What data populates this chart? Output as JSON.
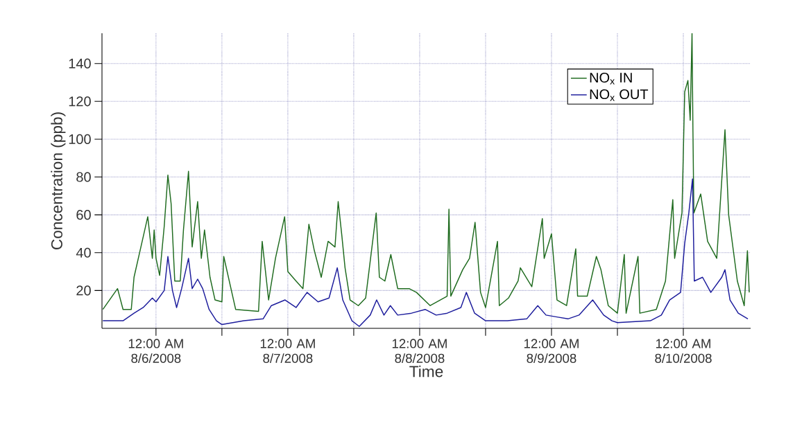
{
  "chart_data": {
    "type": "line",
    "xlabel": "Time",
    "ylabel": "Concentration (ppb)",
    "xlim": [
      "2008-08-05T14:10",
      "2008-08-10T12:15"
    ],
    "ylim": [
      0,
      156
    ],
    "xticks": [
      {
        "value": "2008-08-06T00:00",
        "label": "12:00 AM 8/6/2008"
      },
      {
        "value": "2008-08-06T12:00",
        "label": null
      },
      {
        "value": "2008-08-07T00:00",
        "label": "12:00 AM 8/7/2008"
      },
      {
        "value": "2008-08-07T12:00",
        "label": null
      },
      {
        "value": "2008-08-08T00:00",
        "label": "12:00 AM 8/8/2008"
      },
      {
        "value": "2008-08-08T12:00",
        "label": null
      },
      {
        "value": "2008-08-09T00:00",
        "label": "12:00 AM 8/9/2008"
      },
      {
        "value": "2008-08-09T12:00",
        "label": null
      },
      {
        "value": "2008-08-10T00:00",
        "label": "12:00 AM 8/10/2008"
      }
    ],
    "yticks": [
      20,
      40,
      60,
      80,
      100,
      120,
      140
    ],
    "grid": true,
    "legend": "top right",
    "series": [
      {
        "name": "NO$_{x}$ IN",
        "color": "#1f6b1f",
        "x": [
          "2008-08-05T14:20",
          "2008-08-05T17:00",
          "2008-08-05T18:00",
          "2008-08-05T19:30",
          "2008-08-05T20:00",
          "2008-08-05T21:15",
          "2008-08-05T22:30",
          "2008-08-05T23:20",
          "2008-08-05T23:40",
          "2008-08-06T00:00",
          "2008-08-06T00:40",
          "2008-08-06T01:30",
          "2008-08-06T02:10",
          "2008-08-06T02:45",
          "2008-08-06T03:25",
          "2008-08-06T04:25",
          "2008-08-06T05:00",
          "2008-08-06T05:55",
          "2008-08-06T06:35",
          "2008-08-06T07:35",
          "2008-08-06T08:15",
          "2008-08-06T08:50",
          "2008-08-06T09:50",
          "2008-08-06T10:45",
          "2008-08-06T12:00",
          "2008-08-06T12:20",
          "2008-08-06T14:30",
          "2008-08-06T18:40",
          "2008-08-06T19:20",
          "2008-08-06T20:30",
          "2008-08-06T21:45",
          "2008-08-06T23:25",
          "2008-08-07T00:00",
          "2008-08-07T01:30",
          "2008-08-07T02:45",
          "2008-08-07T03:50",
          "2008-08-07T04:50",
          "2008-08-07T06:05",
          "2008-08-07T07:20",
          "2008-08-07T08:35",
          "2008-08-07T09:10",
          "2008-08-07T09:50",
          "2008-08-07T10:25",
          "2008-08-07T11:20",
          "2008-08-07T12:50",
          "2008-08-07T14:10",
          "2008-08-07T16:05",
          "2008-08-07T16:40",
          "2008-08-07T17:40",
          "2008-08-07T18:45",
          "2008-08-07T20:00",
          "2008-08-07T22:05",
          "2008-08-07T23:25",
          "2008-08-08T01:55",
          "2008-08-08T05:00",
          "2008-08-08T05:20",
          "2008-08-08T05:40",
          "2008-08-08T07:50",
          "2008-08-08T09:05",
          "2008-08-08T10:05",
          "2008-08-08T11:05",
          "2008-08-08T12:00",
          "2008-08-08T14:10",
          "2008-08-08T14:30",
          "2008-08-08T16:10",
          "2008-08-08T17:55",
          "2008-08-08T18:20",
          "2008-08-08T20:25",
          "2008-08-08T22:20",
          "2008-08-08T22:40",
          "2008-08-09T00:00",
          "2008-08-09T01:00",
          "2008-08-09T02:45",
          "2008-08-09T04:25",
          "2008-08-09T04:45",
          "2008-08-09T06:30",
          "2008-08-09T08:10",
          "2008-08-09T09:00",
          "2008-08-09T10:20",
          "2008-08-09T12:00",
          "2008-08-09T13:15",
          "2008-08-09T13:35",
          "2008-08-09T15:45",
          "2008-08-09T16:05",
          "2008-08-09T19:05",
          "2008-08-09T20:45",
          "2008-08-09T22:05",
          "2008-08-09T22:25",
          "2008-08-09T23:45",
          "2008-08-10T00:15",
          "2008-08-10T00:50",
          "2008-08-10T01:15",
          "2008-08-10T01:35",
          "2008-08-10T01:45",
          "2008-08-10T01:55",
          "2008-08-10T03:10",
          "2008-08-10T04:25",
          "2008-08-10T06:05",
          "2008-08-10T07:35",
          "2008-08-10T08:15",
          "2008-08-10T09:50",
          "2008-08-10T11:05",
          "2008-08-10T11:40",
          "2008-08-10T12:00"
        ],
        "values": [
          10,
          21,
          10,
          10,
          27,
          43,
          59,
          37,
          52,
          37,
          28,
          54,
          81,
          66,
          25,
          25,
          52,
          83,
          43,
          67,
          37,
          52,
          27,
          15,
          14,
          38,
          10,
          9,
          46,
          15,
          37,
          59,
          30,
          25,
          21,
          55,
          41,
          27,
          46,
          43,
          67,
          49,
          32,
          15,
          12,
          16,
          61,
          27,
          25,
          39,
          21,
          21,
          19,
          12,
          17,
          63,
          17,
          31,
          37,
          56,
          19,
          11,
          46,
          12,
          16,
          25,
          32,
          22,
          58,
          37,
          50,
          15,
          12,
          42,
          17,
          17,
          38,
          31,
          12,
          8,
          39,
          8,
          38,
          8,
          10,
          25,
          68,
          37,
          61,
          125,
          131,
          110,
          156,
          104,
          61,
          71,
          46,
          37,
          105,
          60,
          25,
          12,
          41,
          19
        ]
      },
      {
        "name": "NO$_{x}$ OUT",
        "color": "#1c1c9c",
        "x": [
          "2008-08-05T14:20",
          "2008-08-05T18:00",
          "2008-08-05T20:00",
          "2008-08-05T21:40",
          "2008-08-05T23:20",
          "2008-08-06T00:00",
          "2008-08-06T01:30",
          "2008-08-06T02:10",
          "2008-08-06T03:00",
          "2008-08-06T03:45",
          "2008-08-06T04:40",
          "2008-08-06T05:55",
          "2008-08-06T06:35",
          "2008-08-06T07:35",
          "2008-08-06T08:30",
          "2008-08-06T09:40",
          "2008-08-06T11:00",
          "2008-08-06T12:00",
          "2008-08-06T16:00",
          "2008-08-06T19:30",
          "2008-08-06T21:00",
          "2008-08-06T23:30",
          "2008-08-07T01:30",
          "2008-08-07T03:30",
          "2008-08-07T05:30",
          "2008-08-07T07:30",
          "2008-08-07T09:00",
          "2008-08-07T10:00",
          "2008-08-07T11:40",
          "2008-08-07T13:00",
          "2008-08-07T15:00",
          "2008-08-07T16:10",
          "2008-08-07T17:30",
          "2008-08-07T18:40",
          "2008-08-07T20:00",
          "2008-08-07T22:30",
          "2008-08-08T01:00",
          "2008-08-08T03:00",
          "2008-08-08T05:00",
          "2008-08-08T07:30",
          "2008-08-08T08:30",
          "2008-08-08T10:00",
          "2008-08-08T12:00",
          "2008-08-08T16:00",
          "2008-08-08T19:30",
          "2008-08-08T21:30",
          "2008-08-08T23:00",
          "2008-08-09T01:00",
          "2008-08-09T03:00",
          "2008-08-09T05:00",
          "2008-08-09T07:30",
          "2008-08-09T09:30",
          "2008-08-09T11:00",
          "2008-08-09T12:00",
          "2008-08-09T18:00",
          "2008-08-09T20:00",
          "2008-08-09T21:30",
          "2008-08-09T23:30",
          "2008-08-10T00:15",
          "2008-08-10T01:00",
          "2008-08-10T01:40",
          "2008-08-10T02:00",
          "2008-08-10T03:30",
          "2008-08-10T05:00",
          "2008-08-10T07:00",
          "2008-08-10T07:35",
          "2008-08-10T08:30",
          "2008-08-10T10:00",
          "2008-08-10T11:45"
        ],
        "values": [
          4,
          4,
          8,
          11,
          16,
          14,
          20,
          38,
          20,
          11,
          21,
          37,
          21,
          26,
          21,
          10,
          4,
          2,
          4,
          5,
          12,
          15,
          11,
          19,
          14,
          16,
          32,
          15,
          4,
          1,
          7,
          15,
          7,
          12,
          7,
          8,
          10,
          7,
          8,
          11,
          19,
          8,
          4,
          4,
          5,
          12,
          7,
          6,
          5,
          7,
          15,
          7,
          4,
          3,
          4,
          7,
          15,
          19,
          45,
          61,
          79,
          25,
          27,
          19,
          27,
          31,
          15,
          8,
          5
        ]
      }
    ]
  }
}
